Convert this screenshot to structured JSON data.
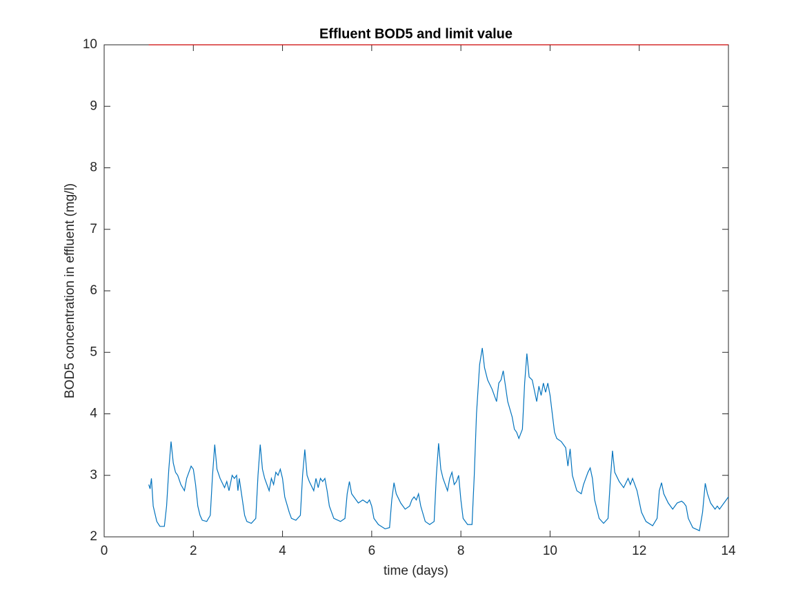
{
  "chart_data": {
    "type": "line",
    "title": "Effluent BOD5 and limit value",
    "xlabel": "time (days)",
    "ylabel": "BOD5 concentration in effluent (mg/l)",
    "xlim": [
      0,
      14
    ],
    "ylim": [
      2,
      10
    ],
    "xticks": [
      0,
      2,
      4,
      6,
      8,
      10,
      12,
      14
    ],
    "yticks": [
      2,
      3,
      4,
      5,
      6,
      7,
      8,
      9,
      10
    ],
    "grid": false,
    "series": [
      {
        "color": "#0072bd",
        "x": [
          1.0,
          1.03,
          1.06,
          1.1,
          1.18,
          1.25,
          1.35,
          1.4,
          1.45,
          1.5,
          1.55,
          1.6,
          1.65,
          1.72,
          1.8,
          1.85,
          1.9,
          1.95,
          2.0,
          2.05,
          2.1,
          2.15,
          2.2,
          2.3,
          2.38,
          2.43,
          2.48,
          2.53,
          2.6,
          2.7,
          2.75,
          2.8,
          2.87,
          2.92,
          2.97,
          3.0,
          3.03,
          3.08,
          3.15,
          3.2,
          3.3,
          3.4,
          3.45,
          3.5,
          3.55,
          3.6,
          3.7,
          3.75,
          3.8,
          3.85,
          3.9,
          3.95,
          4.0,
          4.05,
          4.15,
          4.2,
          4.3,
          4.4,
          4.45,
          4.5,
          4.55,
          4.6,
          4.7,
          4.75,
          4.8,
          4.85,
          4.9,
          4.95,
          5.0,
          5.05,
          5.15,
          5.3,
          5.4,
          5.45,
          5.5,
          5.55,
          5.6,
          5.7,
          5.8,
          5.9,
          5.95,
          6.0,
          6.05,
          6.15,
          6.3,
          6.4,
          6.45,
          6.5,
          6.55,
          6.65,
          6.75,
          6.85,
          6.9,
          6.95,
          7.0,
          7.05,
          7.1,
          7.2,
          7.3,
          7.4,
          7.45,
          7.5,
          7.55,
          7.6,
          7.7,
          7.75,
          7.8,
          7.85,
          7.9,
          7.95,
          8.0,
          8.05,
          8.15,
          8.25,
          8.3,
          8.35,
          8.42,
          8.48,
          8.53,
          8.6,
          8.7,
          8.8,
          8.85,
          8.9,
          8.95,
          9.0,
          9.05,
          9.15,
          9.2,
          9.25,
          9.3,
          9.38,
          9.43,
          9.48,
          9.53,
          9.6,
          9.7,
          9.75,
          9.8,
          9.85,
          9.9,
          9.95,
          10.0,
          10.05,
          10.1,
          10.15,
          10.25,
          10.35,
          10.4,
          10.45,
          10.5,
          10.6,
          10.7,
          10.75,
          10.8,
          10.85,
          10.9,
          10.95,
          11.0,
          11.1,
          11.2,
          11.3,
          11.35,
          11.4,
          11.45,
          11.55,
          11.65,
          11.75,
          11.8,
          11.85,
          11.95,
          12.05,
          12.15,
          12.3,
          12.4,
          12.45,
          12.5,
          12.55,
          12.65,
          12.75,
          12.85,
          12.95,
          13.0,
          13.05,
          13.1,
          13.2,
          13.35,
          13.42,
          13.48,
          13.53,
          13.6,
          13.7,
          13.75,
          13.8,
          13.9,
          14.0
        ],
        "values": [
          2.85,
          2.78,
          2.95,
          2.5,
          2.25,
          2.17,
          2.17,
          2.5,
          3.1,
          3.55,
          3.2,
          3.05,
          3.0,
          2.85,
          2.75,
          2.95,
          3.05,
          3.15,
          3.1,
          2.85,
          2.5,
          2.35,
          2.27,
          2.25,
          2.35,
          3.0,
          3.5,
          3.1,
          2.95,
          2.8,
          2.9,
          2.75,
          3.0,
          2.95,
          3.0,
          2.75,
          2.95,
          2.7,
          2.35,
          2.25,
          2.22,
          2.3,
          3.0,
          3.5,
          3.1,
          2.95,
          2.75,
          2.95,
          2.85,
          3.05,
          3.0,
          3.1,
          2.95,
          2.65,
          2.4,
          2.3,
          2.27,
          2.35,
          3.0,
          3.42,
          3.0,
          2.9,
          2.75,
          2.95,
          2.8,
          2.95,
          2.9,
          2.95,
          2.75,
          2.5,
          2.3,
          2.25,
          2.3,
          2.7,
          2.9,
          2.7,
          2.65,
          2.55,
          2.6,
          2.55,
          2.6,
          2.5,
          2.3,
          2.2,
          2.13,
          2.15,
          2.6,
          2.88,
          2.7,
          2.55,
          2.45,
          2.5,
          2.6,
          2.65,
          2.6,
          2.7,
          2.5,
          2.25,
          2.2,
          2.25,
          3.0,
          3.52,
          3.1,
          2.95,
          2.75,
          2.95,
          3.05,
          2.85,
          2.9,
          3.0,
          2.6,
          2.3,
          2.2,
          2.2,
          3.0,
          4.0,
          4.8,
          5.07,
          4.75,
          4.55,
          4.4,
          4.2,
          4.5,
          4.55,
          4.7,
          4.45,
          4.2,
          3.95,
          3.75,
          3.7,
          3.6,
          3.75,
          4.5,
          4.98,
          4.6,
          4.55,
          4.2,
          4.45,
          4.3,
          4.5,
          4.35,
          4.5,
          4.3,
          4.0,
          3.7,
          3.6,
          3.55,
          3.45,
          3.15,
          3.43,
          3.0,
          2.75,
          2.7,
          2.85,
          2.95,
          3.05,
          3.12,
          2.95,
          2.6,
          2.3,
          2.22,
          2.3,
          2.9,
          3.4,
          3.05,
          2.9,
          2.8,
          2.95,
          2.85,
          2.95,
          2.75,
          2.4,
          2.25,
          2.18,
          2.3,
          2.75,
          2.88,
          2.7,
          2.55,
          2.45,
          2.55,
          2.58,
          2.55,
          2.5,
          2.3,
          2.15,
          2.1,
          2.4,
          2.87,
          2.7,
          2.55,
          2.45,
          2.5,
          2.45,
          2.55,
          2.65
        ]
      },
      {
        "color": "#cc0000",
        "x": [
          1,
          14
        ],
        "values": [
          10,
          10
        ]
      }
    ]
  }
}
